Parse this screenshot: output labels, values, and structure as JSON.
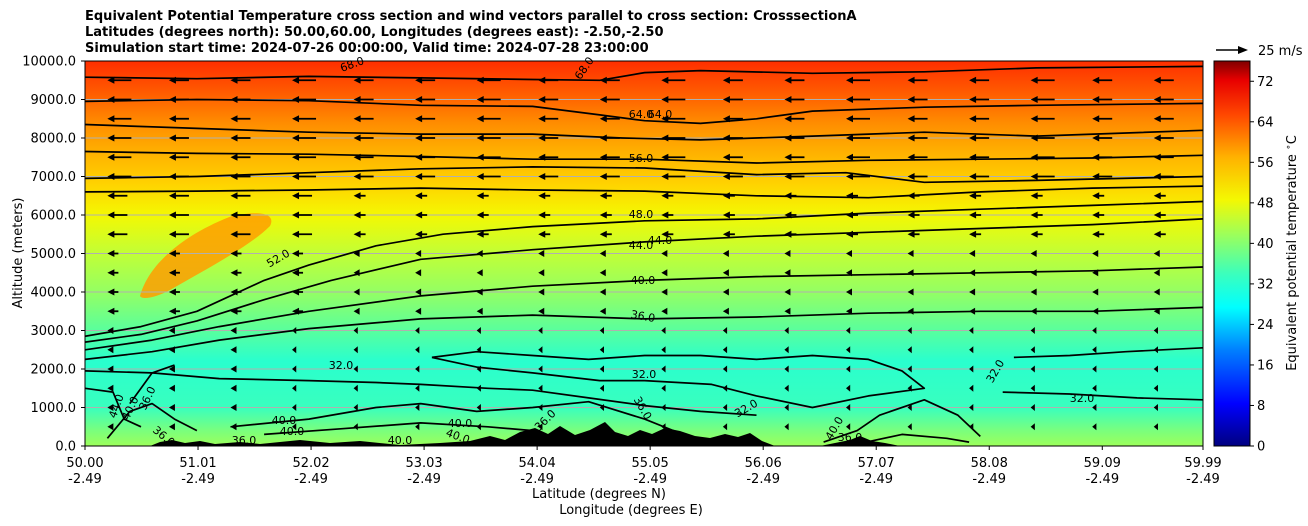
{
  "title_lines": [
    "Equivalent Potential Temperature cross section and wind vectors parallel to cross section: CrosssectionA",
    "Latitudes (degrees north): 50.00,60.00, Longitudes (degrees east): -2.50,-2.50",
    "Simulation start time: 2024-07-26 00:00:00, Valid time: 2024-07-28 23:00:00"
  ],
  "chart_data": {
    "type": "heatmap",
    "subtype": "filled contour cross section with wind vectors",
    "title": "Equivalent Potential Temperature cross section and wind vectors parallel to cross section: CrosssectionA",
    "xlabel": "Latitude (degrees N)",
    "xlabel2": "Longitude (degrees E)",
    "ylabel": "Altitude (meters)",
    "xlim": [
      50.0,
      59.99
    ],
    "ylim": [
      0,
      10000
    ],
    "grid": "horizontal",
    "x_ticks": [
      {
        "lat": "50.00",
        "lon": "-2.49"
      },
      {
        "lat": "51.01",
        "lon": "-2.49"
      },
      {
        "lat": "52.02",
        "lon": "-2.49"
      },
      {
        "lat": "53.03",
        "lon": "-2.49"
      },
      {
        "lat": "54.04",
        "lon": "-2.49"
      },
      {
        "lat": "55.05",
        "lon": "-2.49"
      },
      {
        "lat": "56.06",
        "lon": "-2.49"
      },
      {
        "lat": "57.07",
        "lon": "-2.49"
      },
      {
        "lat": "58.08",
        "lon": "-2.49"
      },
      {
        "lat": "59.09",
        "lon": "-2.49"
      },
      {
        "lat": "59.99",
        "lon": "-2.49"
      }
    ],
    "y_ticks": [
      "0.0",
      "1000.0",
      "2000.0",
      "3000.0",
      "4000.0",
      "5000.0",
      "6000.0",
      "7000.0",
      "8000.0",
      "9000.0",
      "10000.0"
    ],
    "colorbar": {
      "label": "Equivalent potential temperature $^\\circ$C",
      "ticks": [
        "0",
        "8",
        "16",
        "24",
        "32",
        "40",
        "48",
        "56",
        "64",
        "72"
      ],
      "range": [
        0,
        76
      ],
      "colormap": "jet"
    },
    "quiver_key": "25 m/s",
    "contour_labels": [
      "68.0",
      "68.0",
      "64.0",
      "64.0",
      "56.0",
      "48.0",
      "52.0",
      "44.0",
      "44.0",
      "40.0",
      "36.0",
      "32.0",
      "32.0",
      "32.0",
      "32.0",
      "32.0",
      "36.0",
      "40.0",
      "40.0",
      "40.0",
      "40.0",
      "40.0",
      "40.0",
      "44.0",
      "36.0",
      "36.0",
      "36.0",
      "36.0",
      "36.0",
      "40.0"
    ],
    "contours": [
      {
        "level": 68,
        "points": [
          [
            50.0,
            9580
          ],
          [
            51.0,
            9540
          ],
          [
            52.0,
            9600
          ],
          [
            53.0,
            9560
          ],
          [
            54.0,
            9520
          ],
          [
            54.6,
            9500
          ],
          [
            55.0,
            9700
          ],
          [
            55.5,
            9750
          ],
          [
            56.5,
            9680
          ],
          [
            57.5,
            9720
          ],
          [
            58.5,
            9820
          ],
          [
            59.99,
            9860
          ]
        ]
      },
      {
        "level": 64,
        "points": [
          [
            50.0,
            8950
          ],
          [
            51.0,
            9000
          ],
          [
            52.0,
            8970
          ],
          [
            53.0,
            8850
          ],
          [
            54.0,
            8820
          ],
          [
            54.6,
            8600
          ],
          [
            55.0,
            8450
          ],
          [
            55.5,
            8380
          ],
          [
            56.0,
            8500
          ],
          [
            56.5,
            8700
          ],
          [
            57.5,
            8800
          ],
          [
            58.5,
            8850
          ],
          [
            59.99,
            8900
          ]
        ]
      },
      {
        "level": 64,
        "points": [
          [
            50.0,
            8350
          ],
          [
            51.0,
            8250
          ],
          [
            52.0,
            8150
          ],
          [
            53.0,
            8100
          ],
          [
            54.0,
            8100
          ],
          [
            54.8,
            8000
          ],
          [
            55.5,
            7950
          ],
          [
            56.5,
            8050
          ],
          [
            57.5,
            8150
          ],
          [
            58.5,
            8050
          ],
          [
            59.99,
            8200
          ]
        ]
      },
      {
        "level": 60,
        "points": [
          [
            50.0,
            7650
          ],
          [
            51.0,
            7600
          ],
          [
            52.0,
            7580
          ],
          [
            53.0,
            7520
          ],
          [
            54.0,
            7450
          ],
          [
            55.0,
            7450
          ],
          [
            56.0,
            7350
          ],
          [
            57.0,
            7420
          ],
          [
            58.0,
            7450
          ],
          [
            59.0,
            7480
          ],
          [
            59.99,
            7550
          ]
        ]
      },
      {
        "level": 56,
        "points": [
          [
            50.0,
            6950
          ],
          [
            51.0,
            7000
          ],
          [
            52.0,
            7100
          ],
          [
            53.0,
            7200
          ],
          [
            54.0,
            7250
          ],
          [
            55.0,
            7220
          ],
          [
            56.0,
            7050
          ],
          [
            56.8,
            7100
          ],
          [
            57.5,
            6850
          ],
          [
            58.5,
            6900
          ],
          [
            59.99,
            7000
          ]
        ]
      },
      {
        "level": 52,
        "points": [
          [
            50.0,
            6600
          ],
          [
            51.0,
            6620
          ],
          [
            52.0,
            6650
          ],
          [
            53.0,
            6700
          ],
          [
            54.0,
            6650
          ],
          [
            55.0,
            6620
          ],
          [
            56.0,
            6500
          ],
          [
            57.0,
            6450
          ],
          [
            58.0,
            6600
          ],
          [
            59.0,
            6700
          ],
          [
            59.99,
            6750
          ]
        ]
      },
      {
        "level": 48,
        "points": [
          [
            50.0,
            2850
          ],
          [
            50.5,
            3100
          ],
          [
            51.0,
            3500
          ],
          [
            51.6,
            4300
          ],
          [
            52.0,
            4700
          ],
          [
            52.6,
            5200
          ],
          [
            53.2,
            5500
          ],
          [
            54.0,
            5700
          ],
          [
            55.0,
            5850
          ],
          [
            56.0,
            5900
          ],
          [
            57.0,
            6050
          ],
          [
            58.0,
            6150
          ],
          [
            59.0,
            6250
          ],
          [
            59.99,
            6350
          ]
        ]
      },
      {
        "level": 44,
        "points": [
          [
            50.0,
            2700
          ],
          [
            50.5,
            2900
          ],
          [
            51.0,
            3250
          ],
          [
            51.6,
            3800
          ],
          [
            52.2,
            4300
          ],
          [
            53.0,
            4850
          ],
          [
            54.0,
            5100
          ],
          [
            55.0,
            5300
          ],
          [
            56.0,
            5450
          ],
          [
            57.0,
            5550
          ],
          [
            58.0,
            5650
          ],
          [
            59.0,
            5750
          ],
          [
            59.99,
            5900
          ]
        ]
      },
      {
        "level": 40,
        "points": [
          [
            50.0,
            2500
          ],
          [
            50.6,
            2750
          ],
          [
            51.2,
            3100
          ],
          [
            52.0,
            3500
          ],
          [
            53.0,
            3900
          ],
          [
            54.0,
            4150
          ],
          [
            55.0,
            4300
          ],
          [
            56.0,
            4400
          ],
          [
            57.0,
            4450
          ],
          [
            58.0,
            4500
          ],
          [
            59.0,
            4550
          ],
          [
            59.99,
            4650
          ]
        ]
      },
      {
        "level": 36,
        "points": [
          [
            50.0,
            2250
          ],
          [
            50.6,
            2450
          ],
          [
            51.2,
            2750
          ],
          [
            52.0,
            3050
          ],
          [
            53.0,
            3300
          ],
          [
            54.0,
            3400
          ],
          [
            55.0,
            3300
          ],
          [
            56.0,
            3350
          ],
          [
            57.0,
            3450
          ],
          [
            58.0,
            3500
          ],
          [
            59.0,
            3500
          ],
          [
            59.99,
            3600
          ]
        ]
      },
      {
        "level": 32,
        "points": [
          [
            53.1,
            2300
          ],
          [
            53.5,
            2050
          ],
          [
            54.0,
            1900
          ],
          [
            54.6,
            1700
          ],
          [
            55.0,
            1700
          ],
          [
            55.6,
            1600
          ],
          [
            56.0,
            1300
          ],
          [
            56.5,
            1000
          ],
          [
            57.0,
            1300
          ],
          [
            57.5,
            1500
          ],
          [
            57.3,
            1950
          ],
          [
            57.0,
            2250
          ],
          [
            56.5,
            2350
          ],
          [
            56.0,
            2250
          ],
          [
            55.5,
            2350
          ],
          [
            55.0,
            2350
          ],
          [
            54.5,
            2250
          ],
          [
            54.0,
            2350
          ],
          [
            53.5,
            2450
          ],
          [
            53.1,
            2300
          ]
        ]
      },
      {
        "level": 32,
        "points": [
          [
            58.3,
            2300
          ],
          [
            58.8,
            2350
          ],
          [
            59.3,
            2450
          ],
          [
            59.99,
            2550
          ]
        ]
      },
      {
        "level": 32,
        "points": [
          [
            58.2,
            1400
          ],
          [
            58.8,
            1350
          ],
          [
            59.4,
            1250
          ],
          [
            59.99,
            1200
          ]
        ]
      },
      {
        "level": 36,
        "points": [
          [
            50.0,
            1950
          ],
          [
            50.6,
            1900
          ],
          [
            51.2,
            1750
          ],
          [
            52.0,
            1700
          ],
          [
            52.6,
            1650
          ],
          [
            53.0,
            1600
          ],
          [
            53.6,
            1500
          ],
          [
            54.0,
            1450
          ],
          [
            54.5,
            1250
          ],
          [
            55.0,
            1050
          ],
          [
            55.5,
            900
          ],
          [
            56.0,
            800
          ]
        ]
      },
      {
        "level": 40,
        "points": [
          [
            51.3,
            500
          ],
          [
            52.0,
            700
          ],
          [
            52.6,
            1000
          ],
          [
            53.0,
            1100
          ],
          [
            53.5,
            900
          ],
          [
            54.0,
            1000
          ],
          [
            54.5,
            1150
          ],
          [
            55.0,
            700
          ],
          [
            55.3,
            350
          ]
        ]
      },
      {
        "level": 40,
        "points": [
          [
            51.6,
            300
          ],
          [
            52.3,
            450
          ],
          [
            53.0,
            600
          ],
          [
            53.6,
            500
          ],
          [
            54.0,
            400
          ]
        ]
      },
      {
        "level": 40,
        "points": [
          [
            50.0,
            1500
          ],
          [
            50.25,
            1400
          ],
          [
            50.35,
            700
          ],
          [
            50.5,
            500
          ]
        ]
      },
      {
        "level": 36,
        "points": [
          [
            50.4,
            1100
          ],
          [
            50.5,
            1500
          ],
          [
            50.6,
            1900
          ],
          [
            50.8,
            2100
          ]
        ]
      },
      {
        "level": 40,
        "points": [
          [
            56.6,
            100
          ],
          [
            56.9,
            400
          ],
          [
            57.1,
            800
          ],
          [
            57.5,
            1200
          ],
          [
            57.8,
            800
          ],
          [
            58.0,
            250
          ]
        ]
      },
      {
        "level": 36,
        "points": [
          [
            56.9,
            50
          ],
          [
            57.3,
            300
          ],
          [
            57.7,
            200
          ],
          [
            57.9,
            100
          ]
        ]
      },
      {
        "level": 44,
        "points": [
          [
            50.2,
            200
          ],
          [
            50.4,
            900
          ],
          [
            50.6,
            1100
          ],
          [
            50.8,
            700
          ],
          [
            51.0,
            400
          ]
        ]
      }
    ]
  }
}
